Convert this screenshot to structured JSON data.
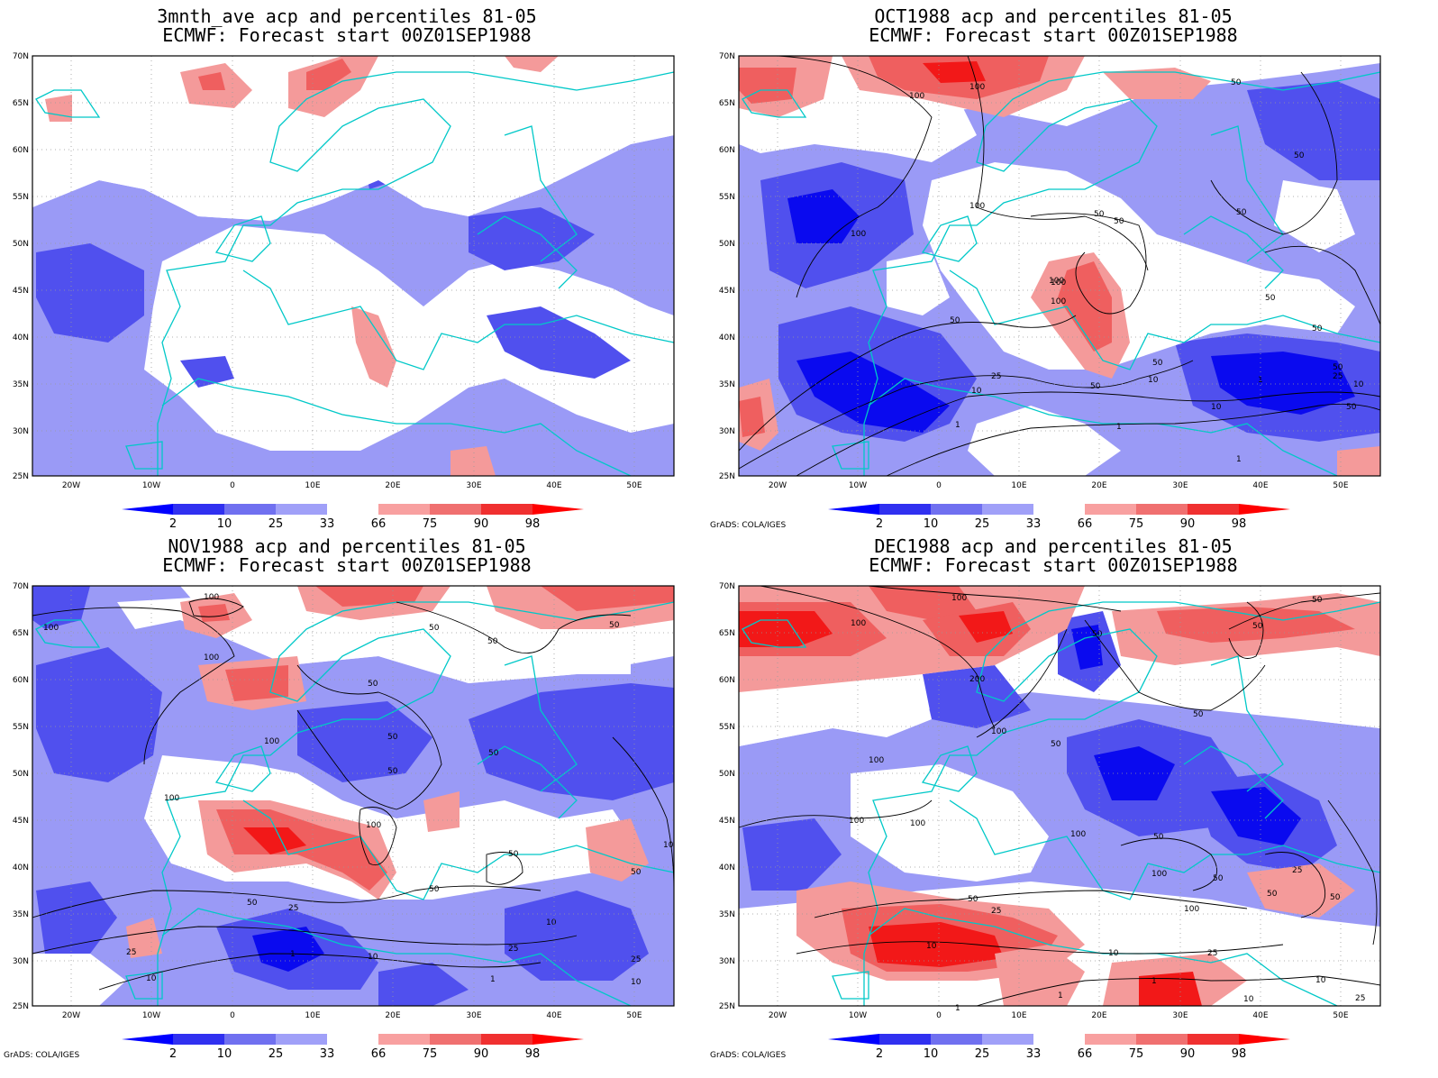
{
  "panels": [
    {
      "title_line1": "3mnth_ave acp and percentiles 81-05",
      "title_line2": "ECMWF: Forecast start 00Z01SEP1988",
      "credit": "",
      "contour_labels": []
    },
    {
      "title_line1": "OCT1988 acp and percentiles 81-05",
      "title_line2": "ECMWF: Forecast start 00Z01SEP1988",
      "credit": "GrADS: COLA/IGES",
      "contour_labels": [
        "100",
        "100",
        "100",
        "50",
        "100",
        "50",
        "50",
        "100",
        "50",
        "50",
        "50",
        "100",
        "100",
        "50",
        "50",
        "50",
        "50",
        "25",
        "10",
        "25",
        "50",
        "10",
        "1",
        "1",
        "10",
        "1",
        "10",
        "1",
        "50"
      ]
    },
    {
      "title_line1": "NOV1988 acp and percentiles 81-05",
      "title_line2": "ECMWF: Forecast start 00Z01SEP1988",
      "credit": "GrADS: COLA/IGES",
      "contour_labels": [
        "100",
        "100",
        "100",
        "50",
        "50",
        "50",
        "50",
        "50",
        "50",
        "100",
        "100",
        "100",
        "50",
        "50",
        "50",
        "25",
        "50",
        "25",
        "10",
        "10",
        "1",
        "25",
        "10",
        "1",
        "10",
        "10",
        "25",
        "50"
      ]
    },
    {
      "title_line1": "DEC1988 acp and percentiles 81-05",
      "title_line2": "ECMWF: Forecast start 00Z01SEP1988",
      "credit": "GrADS: COLA/IGES",
      "contour_labels": [
        "100",
        "100",
        "50",
        "50",
        "50",
        "200",
        "50",
        "100",
        "100",
        "50",
        "100",
        "100",
        "100",
        "50",
        "100",
        "50",
        "50",
        "25",
        "50",
        "25",
        "50",
        "10",
        "100",
        "25",
        "10",
        "10",
        "1",
        "1",
        "1",
        "10",
        "25"
      ]
    }
  ],
  "axes": {
    "lat_labels": [
      "70N",
      "65N",
      "60N",
      "55N",
      "50N",
      "45N",
      "40N",
      "35N",
      "30N",
      "25N"
    ],
    "lon_labels": [
      "20W",
      "10W",
      "0",
      "10E",
      "20E",
      "30E",
      "40E",
      "50E"
    ]
  },
  "colorbar": {
    "labels": [
      "2",
      "10",
      "25",
      "33",
      "66",
      "75",
      "90",
      "98"
    ],
    "colors": [
      "#0000ff",
      "#3030f0",
      "#7070f0",
      "#a0a0f8",
      "#ffffff",
      "#f8a0a0",
      "#f07070",
      "#f03030",
      "#ff0000"
    ]
  },
  "colors": {
    "coast": "#00c8c8",
    "contour": "#000000",
    "blue1": "#0a0aef",
    "blue2": "#5050ee",
    "blue3": "#9a9af6",
    "red1": "#f49a9a",
    "red2": "#ef5f5f",
    "red3": "#f21818"
  }
}
